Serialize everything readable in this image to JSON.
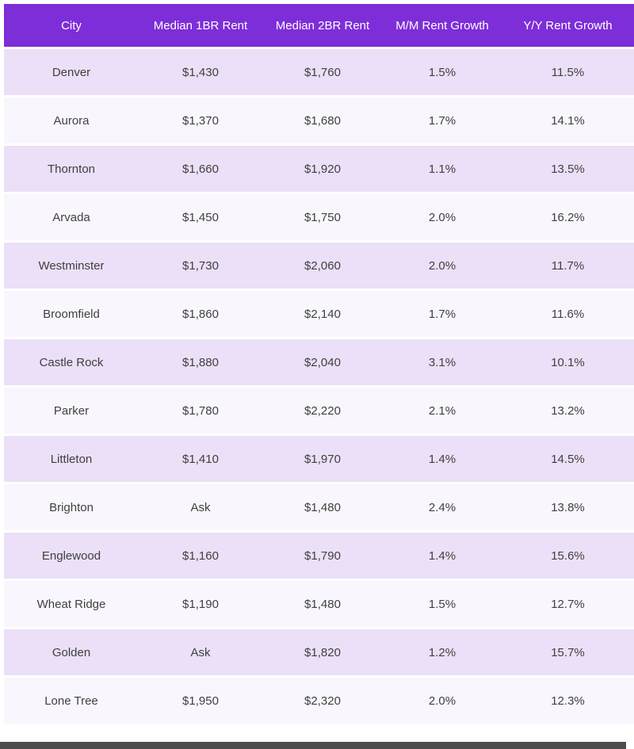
{
  "chart_data": {
    "type": "table",
    "title": "",
    "columns": [
      "City",
      "Median 1BR Rent",
      "Median 2BR Rent",
      "M/M Rent Growth",
      "Y/Y Rent Growth"
    ],
    "rows": [
      [
        "Denver",
        "$1,430",
        "$1,760",
        "1.5%",
        "11.5%"
      ],
      [
        "Aurora",
        "$1,370",
        "$1,680",
        "1.7%",
        "14.1%"
      ],
      [
        "Thornton",
        "$1,660",
        "$1,920",
        "1.1%",
        "13.5%"
      ],
      [
        "Arvada",
        "$1,450",
        "$1,750",
        "2.0%",
        "16.2%"
      ],
      [
        "Westminster",
        "$1,730",
        "$2,060",
        "2.0%",
        "11.7%"
      ],
      [
        "Broomfield",
        "$1,860",
        "$2,140",
        "1.7%",
        "11.6%"
      ],
      [
        "Castle Rock",
        "$1,880",
        "$2,040",
        "3.1%",
        "10.1%"
      ],
      [
        "Parker",
        "$1,780",
        "$2,220",
        "2.1%",
        "13.2%"
      ],
      [
        "Littleton",
        "$1,410",
        "$1,970",
        "1.4%",
        "14.5%"
      ],
      [
        "Brighton",
        "Ask",
        "$1,480",
        "2.4%",
        "13.8%"
      ],
      [
        "Englewood",
        "$1,160",
        "$1,790",
        "1.4%",
        "15.6%"
      ],
      [
        "Wheat Ridge",
        "$1,190",
        "$1,480",
        "1.5%",
        "12.7%"
      ],
      [
        "Golden",
        "Ask",
        "$1,820",
        "1.2%",
        "15.7%"
      ],
      [
        "Lone Tree",
        "$1,950",
        "$2,320",
        "2.0%",
        "12.3%"
      ]
    ]
  },
  "colors": {
    "header_bg": "#7d2ed8",
    "header_text": "#ffffff",
    "row_odd": "#ebe0f7",
    "row_even": "#f9f7fd",
    "text": "#404040",
    "scrollbar": "#4d4d4d",
    "page_bg": "#ffffff"
  }
}
